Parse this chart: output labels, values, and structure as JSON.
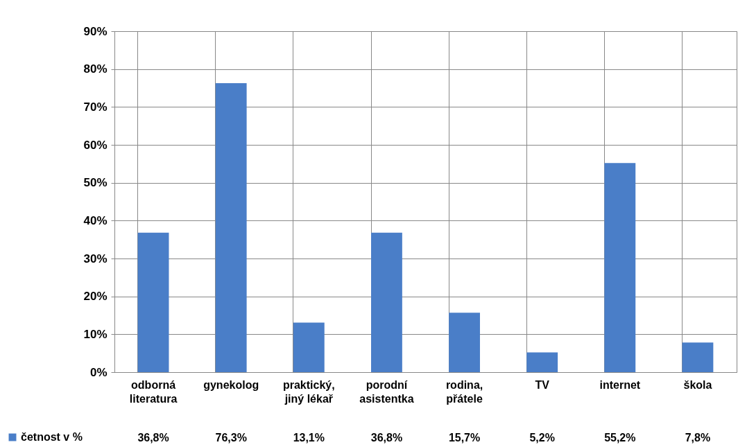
{
  "chart_data": {
    "type": "bar",
    "categories": [
      "odborná literatura",
      "gynekolog",
      "praktický, jiný lékař",
      "porodní asistentka",
      "rodina, přátele",
      "TV",
      "internet",
      "škola"
    ],
    "series": [
      {
        "name": "četnost v %",
        "color": "#4a7ec8",
        "values": [
          36.8,
          76.3,
          13.1,
          36.8,
          15.7,
          5.2,
          55.2,
          7.8
        ],
        "value_labels": [
          "36,8%",
          "76,3%",
          "13,1%",
          "36,8%",
          "15,7%",
          "5,2%",
          "55,2%",
          "7,8%"
        ]
      }
    ],
    "ylim": [
      0,
      90
    ],
    "yticks": [
      {
        "value": 0,
        "label": "0%"
      },
      {
        "value": 10,
        "label": "10%"
      },
      {
        "value": 20,
        "label": "20%"
      },
      {
        "value": 30,
        "label": "30%"
      },
      {
        "value": 40,
        "label": "40%"
      },
      {
        "value": 50,
        "label": "50%"
      },
      {
        "value": 60,
        "label": "60%"
      },
      {
        "value": 70,
        "label": "70%"
      },
      {
        "value": 80,
        "label": "80%"
      },
      {
        "value": 90,
        "label": "90%"
      }
    ],
    "grid": true,
    "legend": "bottom left"
  }
}
